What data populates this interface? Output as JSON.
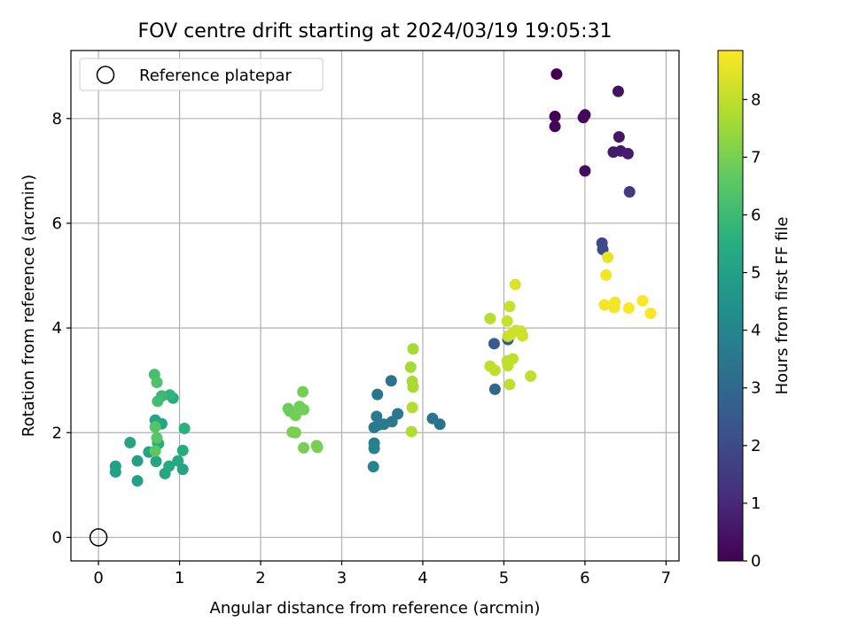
{
  "chart_data": {
    "type": "scatter",
    "title": "FOV centre drift starting at 2024/03/19 19:05:31",
    "xlabel": "Angular distance from reference (arcmin)",
    "ylabel": "Rotation from reference (arcmin)",
    "xlim": [
      -0.34,
      7.16
    ],
    "ylim": [
      -0.45,
      9.3
    ],
    "xticks": [
      0,
      1,
      2,
      3,
      4,
      5,
      6,
      7
    ],
    "yticks": [
      0,
      2,
      4,
      6,
      8
    ],
    "grid": true,
    "legend": {
      "placement": "top-left",
      "entries": [
        "Reference platepar"
      ]
    },
    "reference_point": {
      "x": 0,
      "y": 0,
      "label": "Reference platepar"
    },
    "colorbar": {
      "label": "Hours from first FF file",
      "colormap": "viridis",
      "range": [
        0,
        8.85
      ],
      "ticks": [
        0,
        1,
        2,
        3,
        4,
        5,
        6,
        7,
        8
      ]
    },
    "points": [
      {
        "x": 5.65,
        "y": 8.85,
        "c": 0.0
      },
      {
        "x": 5.63,
        "y": 8.04,
        "c": 0.0
      },
      {
        "x": 5.63,
        "y": 7.85,
        "c": 0.1
      },
      {
        "x": 5.98,
        "y": 8.02,
        "c": 0.2
      },
      {
        "x": 6.0,
        "y": 8.07,
        "c": 0.2
      },
      {
        "x": 6.0,
        "y": 7.0,
        "c": 0.3
      },
      {
        "x": 6.41,
        "y": 8.52,
        "c": 0.4
      },
      {
        "x": 6.42,
        "y": 7.65,
        "c": 0.5
      },
      {
        "x": 6.35,
        "y": 7.36,
        "c": 0.6
      },
      {
        "x": 6.44,
        "y": 7.38,
        "c": 0.6
      },
      {
        "x": 6.53,
        "y": 7.33,
        "c": 0.7
      },
      {
        "x": 6.55,
        "y": 6.6,
        "c": 1.5
      },
      {
        "x": 6.21,
        "y": 5.62,
        "c": 1.9
      },
      {
        "x": 6.22,
        "y": 5.5,
        "c": 2.0
      },
      {
        "x": 4.88,
        "y": 3.7,
        "c": 2.6
      },
      {
        "x": 5.05,
        "y": 3.78,
        "c": 2.7
      },
      {
        "x": 4.89,
        "y": 2.83,
        "c": 3.0
      },
      {
        "x": 3.61,
        "y": 2.99,
        "c": 3.3
      },
      {
        "x": 3.44,
        "y": 2.73,
        "c": 3.4
      },
      {
        "x": 3.43,
        "y": 2.31,
        "c": 3.5
      },
      {
        "x": 3.4,
        "y": 2.1,
        "c": 3.6
      },
      {
        "x": 3.46,
        "y": 2.15,
        "c": 3.6
      },
      {
        "x": 3.52,
        "y": 2.16,
        "c": 3.7
      },
      {
        "x": 3.62,
        "y": 2.21,
        "c": 3.6
      },
      {
        "x": 3.69,
        "y": 2.36,
        "c": 3.5
      },
      {
        "x": 4.12,
        "y": 2.27,
        "c": 3.4
      },
      {
        "x": 4.21,
        "y": 2.16,
        "c": 3.3
      },
      {
        "x": 3.4,
        "y": 1.8,
        "c": 3.8
      },
      {
        "x": 3.4,
        "y": 1.7,
        "c": 3.9
      },
      {
        "x": 3.39,
        "y": 1.35,
        "c": 4.0
      },
      {
        "x": 0.21,
        "y": 1.36,
        "c": 5.0
      },
      {
        "x": 0.21,
        "y": 1.25,
        "c": 5.0
      },
      {
        "x": 0.39,
        "y": 1.81,
        "c": 5.1
      },
      {
        "x": 0.48,
        "y": 1.46,
        "c": 5.0
      },
      {
        "x": 0.48,
        "y": 1.08,
        "c": 5.0
      },
      {
        "x": 0.62,
        "y": 1.63,
        "c": 5.1
      },
      {
        "x": 0.71,
        "y": 1.45,
        "c": 5.2
      },
      {
        "x": 0.7,
        "y": 2.24,
        "c": 5.2
      },
      {
        "x": 0.74,
        "y": 2.17,
        "c": 5.3
      },
      {
        "x": 0.78,
        "y": 2.17,
        "c": 5.2
      },
      {
        "x": 0.73,
        "y": 1.81,
        "c": 5.4
      },
      {
        "x": 0.74,
        "y": 1.79,
        "c": 5.5
      },
      {
        "x": 0.82,
        "y": 1.22,
        "c": 5.2
      },
      {
        "x": 0.87,
        "y": 1.36,
        "c": 5.3
      },
      {
        "x": 0.98,
        "y": 1.46,
        "c": 5.3
      },
      {
        "x": 1.04,
        "y": 1.3,
        "c": 5.2
      },
      {
        "x": 1.04,
        "y": 1.66,
        "c": 5.4
      },
      {
        "x": 1.06,
        "y": 2.08,
        "c": 5.6
      },
      {
        "x": 0.92,
        "y": 2.66,
        "c": 5.4
      },
      {
        "x": 0.88,
        "y": 2.72,
        "c": 5.7
      },
      {
        "x": 0.78,
        "y": 2.7,
        "c": 5.9
      },
      {
        "x": 0.73,
        "y": 2.6,
        "c": 6.1
      },
      {
        "x": 0.69,
        "y": 3.11,
        "c": 6.2
      },
      {
        "x": 0.72,
        "y": 2.96,
        "c": 6.3
      },
      {
        "x": 0.7,
        "y": 2.11,
        "c": 6.4
      },
      {
        "x": 0.72,
        "y": 1.9,
        "c": 6.5
      },
      {
        "x": 0.7,
        "y": 1.65,
        "c": 6.6
      },
      {
        "x": 2.34,
        "y": 2.46,
        "c": 6.8
      },
      {
        "x": 2.36,
        "y": 2.41,
        "c": 6.8
      },
      {
        "x": 2.43,
        "y": 2.33,
        "c": 6.9
      },
      {
        "x": 2.48,
        "y": 2.5,
        "c": 6.9
      },
      {
        "x": 2.53,
        "y": 2.44,
        "c": 6.9
      },
      {
        "x": 2.52,
        "y": 2.78,
        "c": 6.9
      },
      {
        "x": 2.39,
        "y": 2.01,
        "c": 7.0
      },
      {
        "x": 2.43,
        "y": 2.0,
        "c": 7.0
      },
      {
        "x": 2.53,
        "y": 1.71,
        "c": 7.0
      },
      {
        "x": 2.69,
        "y": 1.75,
        "c": 7.0
      },
      {
        "x": 2.7,
        "y": 1.72,
        "c": 7.0
      },
      {
        "x": 3.88,
        "y": 3.6,
        "c": 7.6
      },
      {
        "x": 3.85,
        "y": 3.25,
        "c": 7.6
      },
      {
        "x": 3.87,
        "y": 2.98,
        "c": 7.7
      },
      {
        "x": 3.88,
        "y": 2.87,
        "c": 7.7
      },
      {
        "x": 3.87,
        "y": 2.48,
        "c": 7.8
      },
      {
        "x": 3.86,
        "y": 2.02,
        "c": 7.8
      },
      {
        "x": 4.83,
        "y": 4.18,
        "c": 7.9
      },
      {
        "x": 4.83,
        "y": 3.27,
        "c": 8.0
      },
      {
        "x": 4.89,
        "y": 3.19,
        "c": 8.0
      },
      {
        "x": 5.04,
        "y": 3.37,
        "c": 8.0
      },
      {
        "x": 5.05,
        "y": 3.28,
        "c": 8.0
      },
      {
        "x": 5.11,
        "y": 3.41,
        "c": 8.0
      },
      {
        "x": 5.07,
        "y": 2.92,
        "c": 8.0
      },
      {
        "x": 5.33,
        "y": 3.08,
        "c": 8.0
      },
      {
        "x": 5.04,
        "y": 4.13,
        "c": 8.1
      },
      {
        "x": 5.07,
        "y": 4.41,
        "c": 8.1
      },
      {
        "x": 5.05,
        "y": 3.84,
        "c": 8.1
      },
      {
        "x": 5.09,
        "y": 3.88,
        "c": 8.2
      },
      {
        "x": 5.15,
        "y": 3.95,
        "c": 8.2
      },
      {
        "x": 5.21,
        "y": 3.94,
        "c": 8.2
      },
      {
        "x": 5.23,
        "y": 3.85,
        "c": 8.2
      },
      {
        "x": 5.14,
        "y": 4.83,
        "c": 8.4
      },
      {
        "x": 6.28,
        "y": 5.35,
        "c": 8.5
      },
      {
        "x": 6.26,
        "y": 5.01,
        "c": 8.7
      },
      {
        "x": 6.24,
        "y": 4.44,
        "c": 8.7
      },
      {
        "x": 6.36,
        "y": 4.39,
        "c": 8.7
      },
      {
        "x": 6.37,
        "y": 4.49,
        "c": 8.7
      },
      {
        "x": 6.54,
        "y": 4.38,
        "c": 8.8
      },
      {
        "x": 6.71,
        "y": 4.52,
        "c": 8.8
      },
      {
        "x": 6.81,
        "y": 4.28,
        "c": 8.8
      }
    ]
  }
}
